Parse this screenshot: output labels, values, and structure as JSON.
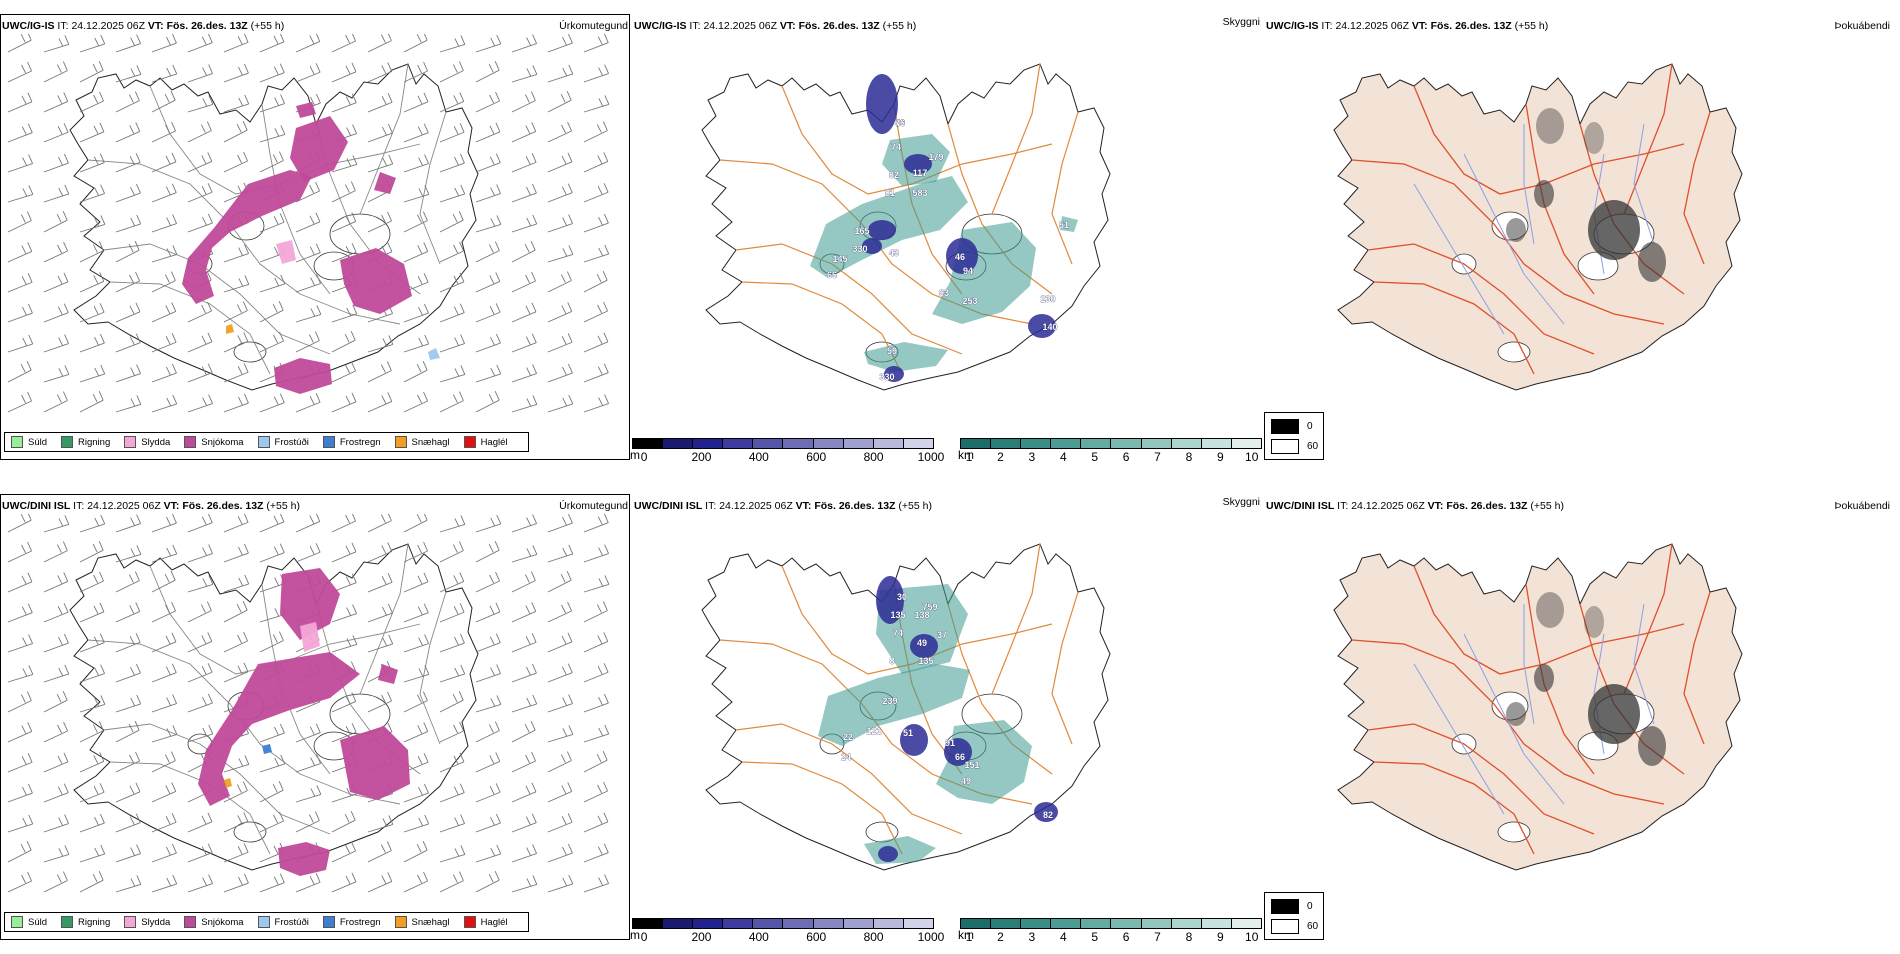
{
  "rows": [
    {
      "model": "UWC/IG-IS",
      "it_label": "IT:",
      "it_value": "24.12.2025 06Z",
      "vt_label": "VT:",
      "vt_value": "Fös. 26.des. 13Z",
      "lead": "(+55 h)",
      "titles": {
        "precip": "Úrkomutegund",
        "cloud": "Skyggni",
        "fog": "Þokuábendi"
      },
      "cloud_labels": [
        "40",
        "74",
        "179",
        "117",
        "82",
        "81",
        "583",
        "165",
        "330",
        "145",
        "66",
        "43",
        "46",
        "94",
        "63",
        "253",
        "230",
        "140",
        "51",
        "59",
        "330",
        "76"
      ]
    },
    {
      "model": "UWC/DINI ISL",
      "it_label": "IT:",
      "it_value": "24.12.2025 06Z",
      "vt_label": "VT:",
      "vt_value": "Fös. 26.des. 13Z",
      "lead": "(+55 h)",
      "titles": {
        "precip": "Úrkomutegund",
        "cloud": "Skyggni",
        "fog": "Þokuábendi"
      },
      "cloud_labels": [
        "30",
        "759",
        "135",
        "138",
        "74",
        "37",
        "49",
        "135",
        "8",
        "239",
        "121",
        "51",
        "22",
        "24",
        "91",
        "66",
        "151",
        "49",
        "82"
      ]
    }
  ],
  "precip_legend": [
    {
      "label": "Súld",
      "color": "#99ee99"
    },
    {
      "label": "Rigning",
      "color": "#339966"
    },
    {
      "label": "Slydda",
      "color": "#f4a6d7"
    },
    {
      "label": "Snjókoma",
      "color": "#c04a9a"
    },
    {
      "label": "Frostúði",
      "color": "#9ec7f0"
    },
    {
      "label": "Frostregn",
      "color": "#3d7fd0"
    },
    {
      "label": "Snæhagl",
      "color": "#f0a020"
    },
    {
      "label": "Haglél",
      "color": "#e01010"
    }
  ],
  "cloud_base": {
    "unit": "m",
    "ticks": [
      "0",
      "200",
      "400",
      "600",
      "800",
      "1000"
    ],
    "colors": [
      "#000000",
      "#1a1a6e",
      "#22228e",
      "#3c3c9e",
      "#5555aa",
      "#6e6eb6",
      "#8787c2",
      "#a0a0ce",
      "#b9b9da",
      "#d2d2e8"
    ]
  },
  "visibility": {
    "unit": "km",
    "ticks": [
      "1",
      "2",
      "3",
      "4",
      "5",
      "6",
      "7",
      "8",
      "9",
      "10"
    ],
    "colors": [
      "#1d6e6a",
      "#2a7e78",
      "#3a8e86",
      "#4c9c94",
      "#62aaa2",
      "#7ab8b0",
      "#94c6c0",
      "#aed4ce",
      "#c8e2de",
      "#e4f0ee"
    ]
  },
  "fog_key": [
    {
      "label": "0",
      "color": "#000000"
    },
    {
      "label": "60",
      "color": "#ffffff"
    }
  ]
}
